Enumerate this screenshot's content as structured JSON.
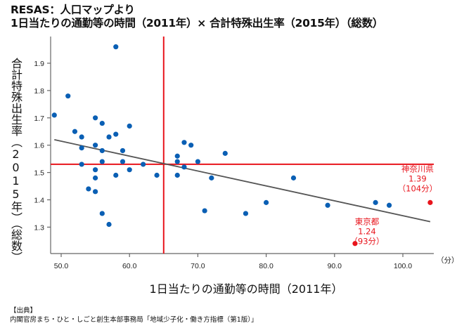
{
  "header": {
    "title_line1": "RESAS：人口マップより",
    "title_line2": "1日当たりの通勤等の時間（2011年）× 合計特殊出生率（2015年）（総数）"
  },
  "source": {
    "label": "【出典】",
    "text": "内閣官房まち・ひと・しごと創生本部事務局「地域少子化・働き方指標（第1版）」"
  },
  "colors": {
    "point": "#0a5fb4",
    "highlight": "#e8141c",
    "mean_line": "#e8141c",
    "trend_line": "#555555",
    "axis": "#666666"
  },
  "chart_data": {
    "type": "scatter",
    "title": "1日当たりの通勤等の時間（2011年）× 合計特殊出生率（2015年）（総数）",
    "xlabel": "1日当たりの通勤等の時間（2011年）",
    "ylabel": "合計特殊出生率（2015年）（総数）",
    "x_unit": "（分）",
    "xlim": [
      48.5,
      104.5
    ],
    "ylim": [
      1.22,
      1.98
    ],
    "x_ticks": [
      50,
      60,
      70,
      80,
      90,
      100
    ],
    "x_tick_labels": [
      "50.0",
      "60.0",
      "70.0",
      "80.0",
      "90.0",
      "100.0"
    ],
    "y_ticks": [
      1.3,
      1.4,
      1.5,
      1.6,
      1.7,
      1.8,
      1.9
    ],
    "y_tick_labels": [
      "1.3",
      "1.4",
      "1.5",
      "1.6",
      "1.7",
      "1.8",
      "1.9"
    ],
    "grid": false,
    "mean_x": 65.0,
    "mean_y": 1.53,
    "trend_line": {
      "x": [
        49,
        104
      ],
      "y": [
        1.62,
        1.32
      ]
    },
    "points": [
      {
        "x": 49,
        "y": 1.71
      },
      {
        "x": 51,
        "y": 1.78
      },
      {
        "x": 58,
        "y": 1.96
      },
      {
        "x": 52,
        "y": 1.65
      },
      {
        "x": 55,
        "y": 1.7
      },
      {
        "x": 56,
        "y": 1.68
      },
      {
        "x": 60,
        "y": 1.67
      },
      {
        "x": 53,
        "y": 1.63
      },
      {
        "x": 57,
        "y": 1.63
      },
      {
        "x": 58,
        "y": 1.64
      },
      {
        "x": 53,
        "y": 1.59
      },
      {
        "x": 55,
        "y": 1.6
      },
      {
        "x": 56,
        "y": 1.58
      },
      {
        "x": 59,
        "y": 1.58
      },
      {
        "x": 53,
        "y": 1.53
      },
      {
        "x": 56,
        "y": 1.54
      },
      {
        "x": 59,
        "y": 1.54
      },
      {
        "x": 62,
        "y": 1.53
      },
      {
        "x": 55,
        "y": 1.51
      },
      {
        "x": 55,
        "y": 1.48
      },
      {
        "x": 58,
        "y": 1.49
      },
      {
        "x": 60,
        "y": 1.51
      },
      {
        "x": 64,
        "y": 1.49
      },
      {
        "x": 54,
        "y": 1.44
      },
      {
        "x": 55,
        "y": 1.43
      },
      {
        "x": 56,
        "y": 1.35
      },
      {
        "x": 57,
        "y": 1.31
      },
      {
        "x": 68,
        "y": 1.61
      },
      {
        "x": 69,
        "y": 1.6
      },
      {
        "x": 67,
        "y": 1.56
      },
      {
        "x": 67,
        "y": 1.54
      },
      {
        "x": 70,
        "y": 1.54
      },
      {
        "x": 68,
        "y": 1.52
      },
      {
        "x": 74,
        "y": 1.57
      },
      {
        "x": 67,
        "y": 1.49
      },
      {
        "x": 72,
        "y": 1.48
      },
      {
        "x": 84,
        "y": 1.48
      },
      {
        "x": 80,
        "y": 1.39
      },
      {
        "x": 71,
        "y": 1.36
      },
      {
        "x": 77,
        "y": 1.35
      },
      {
        "x": 89,
        "y": 1.38
      },
      {
        "x": 96,
        "y": 1.39
      },
      {
        "x": 98,
        "y": 1.38
      }
    ],
    "highlights": [
      {
        "name": "神奈川県",
        "x": 104,
        "y": 1.39,
        "value_label": "1.39",
        "time_label": "（104分）"
      },
      {
        "name": "東京都",
        "x": 93,
        "y": 1.24,
        "value_label": "1.24",
        "time_label": "（93分）"
      }
    ]
  }
}
